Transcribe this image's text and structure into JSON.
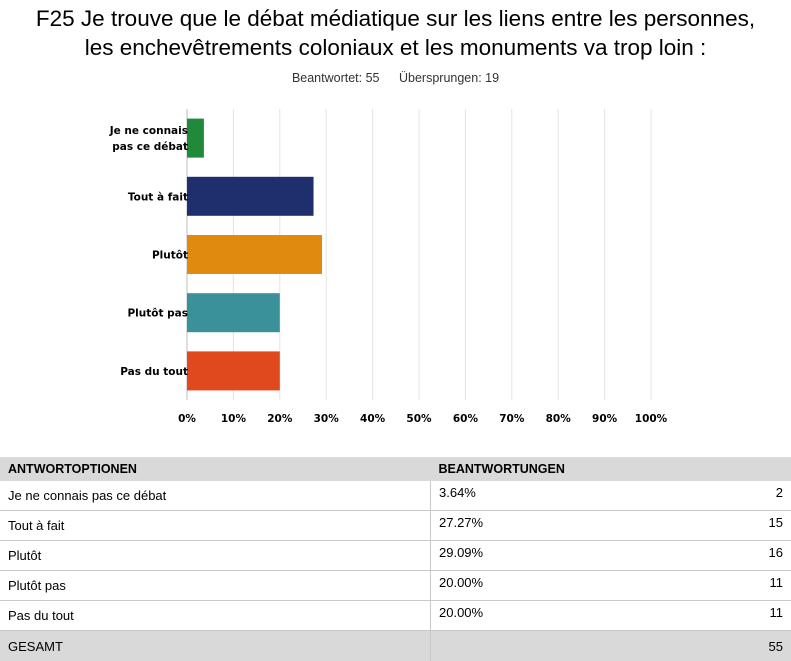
{
  "title_line1": "F25 Je trouve que le débat médiatique sur les liens entre les personnes,",
  "title_line2": "les enchevêtrements coloniaux et les monuments va trop loin :",
  "stats": {
    "answered": "Beantwortet: 55",
    "skipped": "Übersprungen: 19"
  },
  "chart_data": {
    "type": "bar",
    "orientation": "horizontal",
    "categories": [
      "Je ne connais pas ce débat",
      "Tout à fait",
      "Plutôt",
      "Plutôt pas",
      "Pas du tout"
    ],
    "category_label_lines": [
      [
        "Je ne connais",
        "pas ce débat"
      ],
      [
        "Tout à fait"
      ],
      [
        "Plutôt"
      ],
      [
        "Plutôt pas"
      ],
      [
        "Pas du tout"
      ]
    ],
    "values": [
      3.64,
      27.27,
      29.09,
      20.0,
      20.0
    ],
    "colors": [
      "#1f8a3a",
      "#1f2f6e",
      "#e08a10",
      "#3a919a",
      "#e0481e"
    ],
    "xlim": [
      0,
      100
    ],
    "xticks": [
      0,
      10,
      20,
      30,
      40,
      50,
      60,
      70,
      80,
      90,
      100
    ],
    "xtick_labels": [
      "0%",
      "10%",
      "20%",
      "30%",
      "40%",
      "50%",
      "60%",
      "70%",
      "80%",
      "90%",
      "100%"
    ],
    "grid": true
  },
  "table": {
    "headers": [
      "ANTWORTOPTIONEN",
      "BEANTWORTUNGEN"
    ],
    "rows": [
      {
        "option": "Je ne connais pas ce débat",
        "percent": "3.64%",
        "count": "2"
      },
      {
        "option": "Tout à fait",
        "percent": "27.27%",
        "count": "15"
      },
      {
        "option": "Plutôt",
        "percent": "29.09%",
        "count": "16"
      },
      {
        "option": "Plutôt pas",
        "percent": "20.00%",
        "count": "11"
      },
      {
        "option": "Pas du tout",
        "percent": "20.00%",
        "count": "11"
      }
    ],
    "total_label": "GESAMT",
    "total_count": "55"
  }
}
